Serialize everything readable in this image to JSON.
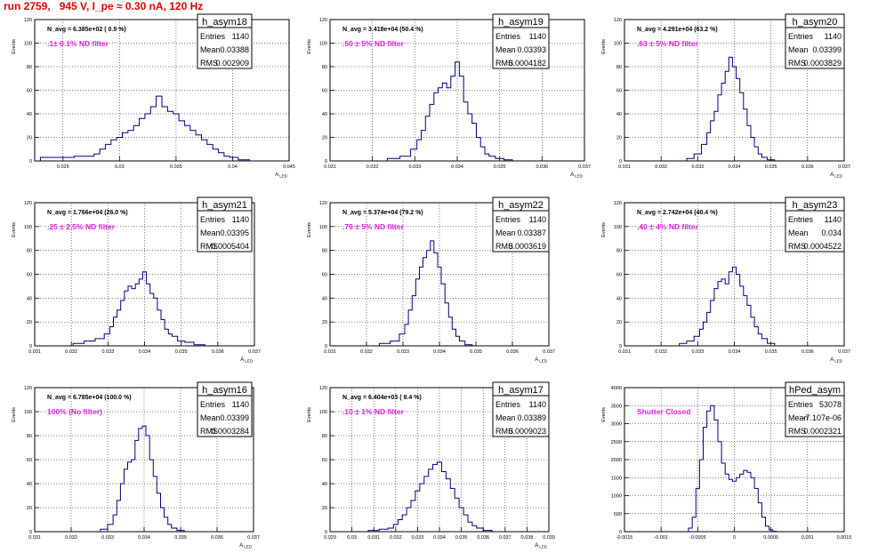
{
  "run_title": "run 2759,   945 V, I_pe ≈ 0.30 nA, 120 Hz",
  "colors": {
    "hist_line": "#000080",
    "filter_label": "#e020e0",
    "run_title": "#e00000",
    "grid": "#000000"
  },
  "chart_data": [
    {
      "type": "histogram",
      "hist_name": "h_asym18",
      "nav": "N_avg = 6.385e+02 ( 0.9 %)",
      "filter": ".1± 0.1% ND filter",
      "stats": [
        {
          "label": "Entries",
          "value": "1140"
        },
        {
          "label": "Mean",
          "value": "0.03388"
        },
        {
          "label": "RMS",
          "value": "0.002909"
        }
      ],
      "xlabel": "A_LED",
      "ylabel": "Events",
      "xlim": [
        0.0225,
        0.045
      ],
      "ylim": [
        0,
        120
      ],
      "xticks": [
        "0.025",
        "0.03",
        "0.035",
        "0.04",
        "0.045"
      ],
      "xtick_values": [
        0.025,
        0.03,
        0.035,
        0.04,
        0.045
      ],
      "yticks": [
        "0",
        "20",
        "40",
        "60",
        "80",
        "100",
        "120"
      ],
      "ytick_values": [
        0,
        20,
        40,
        60,
        80,
        100,
        120
      ],
      "bins_x": [
        0.0245,
        0.0275,
        0.028,
        0.0285,
        0.029,
        0.0295,
        0.03,
        0.0305,
        0.031,
        0.0315,
        0.032,
        0.0325,
        0.033,
        0.0335,
        0.034,
        0.0345,
        0.035,
        0.0355,
        0.036,
        0.0365,
        0.037,
        0.0375,
        0.038,
        0.0385,
        0.039,
        0.0395,
        0.04,
        0.041
      ],
      "counts": [
        3,
        4,
        6,
        10,
        14,
        18,
        20,
        24,
        26,
        30,
        36,
        40,
        46,
        55,
        46,
        42,
        40,
        34,
        30,
        26,
        22,
        18,
        14,
        10,
        7,
        4,
        3,
        1
      ]
    },
    {
      "type": "histogram",
      "hist_name": "h_asym19",
      "nav": "N_avg = 3.418e+04 (50.4 %)",
      "filter": ".50 ± 5% ND filter",
      "stats": [
        {
          "label": "Entries",
          "value": "1140"
        },
        {
          "label": "Mean",
          "value": "0.03393"
        },
        {
          "label": "RMS",
          "value": "0.0004182"
        }
      ],
      "xlabel": "A_LED",
      "ylabel": "Events",
      "xlim": [
        0.031,
        0.037
      ],
      "ylim": [
        0,
        120
      ],
      "xticks": [
        "0.031",
        "0.032",
        "0.033",
        "0.034",
        "0.035",
        "0.036",
        "0.037"
      ],
      "xtick_values": [
        0.031,
        0.032,
        0.033,
        0.034,
        0.035,
        0.036,
        0.037
      ],
      "yticks": [
        "0",
        "20",
        "40",
        "60",
        "80",
        "100",
        "120"
      ],
      "ytick_values": [
        0,
        20,
        40,
        60,
        80,
        100,
        120
      ],
      "bins_x": [
        0.0325,
        0.0328,
        0.033,
        0.0331,
        0.0332,
        0.0333,
        0.0334,
        0.0335,
        0.0336,
        0.0337,
        0.0338,
        0.0339,
        0.034,
        0.0341,
        0.0342,
        0.0343,
        0.0344,
        0.0345,
        0.0346,
        0.0347,
        0.0348,
        0.035,
        0.0352
      ],
      "counts": [
        2,
        4,
        10,
        18,
        26,
        38,
        48,
        58,
        62,
        66,
        62,
        72,
        84,
        72,
        50,
        40,
        32,
        20,
        12,
        6,
        4,
        2,
        1
      ]
    },
    {
      "type": "histogram",
      "hist_name": "h_asym20",
      "nav": "N_avg = 4.291e+04 (63.2 %)",
      "filter": ".63 ± 5% ND filter",
      "stats": [
        {
          "label": "Entries",
          "value": "1140"
        },
        {
          "label": "Mean",
          "value": "0.03399"
        },
        {
          "label": "RMS",
          "value": "0.0003829"
        }
      ],
      "xlabel": "A_LED",
      "ylabel": "Events",
      "xlim": [
        0.031,
        0.037
      ],
      "ylim": [
        0,
        120
      ],
      "xticks": [
        "0.031",
        "0.032",
        "0.033",
        "0.034",
        "0.035",
        "0.036",
        "0.037"
      ],
      "xtick_values": [
        0.031,
        0.032,
        0.033,
        0.034,
        0.035,
        0.036,
        0.037
      ],
      "yticks": [
        "0",
        "20",
        "40",
        "60",
        "80",
        "100",
        "120"
      ],
      "ytick_values": [
        0,
        20,
        40,
        60,
        80,
        100,
        120
      ],
      "bins_x": [
        0.0328,
        0.033,
        0.0332,
        0.0333,
        0.0334,
        0.0335,
        0.0336,
        0.0337,
        0.0338,
        0.0339,
        0.034,
        0.0341,
        0.0342,
        0.0343,
        0.0344,
        0.0345,
        0.0346,
        0.0347,
        0.0348,
        0.035
      ],
      "counts": [
        2,
        6,
        14,
        24,
        34,
        42,
        56,
        66,
        76,
        88,
        80,
        70,
        58,
        44,
        30,
        20,
        12,
        6,
        3,
        1
      ]
    },
    {
      "type": "histogram",
      "hist_name": "h_asym21",
      "nav": "N_avg = 1.766e+04 (26.0 %)",
      "filter": ".25 ± 2.5% ND filter",
      "stats": [
        {
          "label": "Entries",
          "value": "1140"
        },
        {
          "label": "Mean",
          "value": "0.03395"
        },
        {
          "label": "RMS",
          "value": "0.0005404"
        }
      ],
      "xlabel": "A_LED",
      "ylabel": "Events",
      "xlim": [
        0.031,
        0.037
      ],
      "ylim": [
        0,
        120
      ],
      "xticks": [
        "0.031",
        "0.032",
        "0.033",
        "0.034",
        "0.035",
        "0.036",
        "0.037"
      ],
      "xtick_values": [
        0.031,
        0.032,
        0.033,
        0.034,
        0.035,
        0.036,
        0.037
      ],
      "yticks": [
        "0",
        "20",
        "40",
        "60",
        "80",
        "100",
        "120"
      ],
      "ytick_values": [
        0,
        20,
        40,
        60,
        80,
        100,
        120
      ],
      "bins_x": [
        0.0322,
        0.0325,
        0.0328,
        0.033,
        0.0331,
        0.0332,
        0.0333,
        0.0334,
        0.0335,
        0.0336,
        0.0337,
        0.0338,
        0.0339,
        0.034,
        0.0341,
        0.0342,
        0.0343,
        0.0344,
        0.0345,
        0.0346,
        0.0347,
        0.0348,
        0.035,
        0.0352,
        0.0355
      ],
      "counts": [
        2,
        4,
        6,
        10,
        16,
        24,
        30,
        38,
        46,
        50,
        48,
        52,
        56,
        62,
        52,
        44,
        40,
        30,
        22,
        14,
        10,
        8,
        4,
        3,
        1
      ]
    },
    {
      "type": "histogram",
      "hist_name": "h_asym22",
      "nav": "N_avg = 5.374e+04 (79.2 %)",
      "filter": ".79 ± 5% ND filter",
      "stats": [
        {
          "label": "Entries",
          "value": "1140"
        },
        {
          "label": "Mean",
          "value": "0.03387"
        },
        {
          "label": "RMS",
          "value": "0.0003619"
        }
      ],
      "xlabel": "A_LED",
      "ylabel": "Events",
      "xlim": [
        0.031,
        0.037
      ],
      "ylim": [
        0,
        120
      ],
      "xticks": [
        "0.031",
        "0.032",
        "0.033",
        "0.034",
        "0.035",
        "0.036",
        "0.037"
      ],
      "xtick_values": [
        0.031,
        0.032,
        0.033,
        0.034,
        0.035,
        0.036,
        0.037
      ],
      "yticks": [
        "0",
        "20",
        "40",
        "60",
        "80",
        "100",
        "120"
      ],
      "ytick_values": [
        0,
        20,
        40,
        60,
        80,
        100,
        120
      ],
      "bins_x": [
        0.0325,
        0.0328,
        0.033,
        0.0331,
        0.0332,
        0.0333,
        0.0334,
        0.0335,
        0.0336,
        0.0337,
        0.0338,
        0.0339,
        0.034,
        0.0341,
        0.0342,
        0.0343,
        0.0344,
        0.0345,
        0.0346,
        0.0348
      ],
      "counts": [
        2,
        4,
        10,
        18,
        30,
        42,
        56,
        66,
        74,
        80,
        88,
        78,
        66,
        52,
        36,
        24,
        14,
        8,
        4,
        1
      ]
    },
    {
      "type": "histogram",
      "hist_name": "h_asym23",
      "nav": "N_avg = 2.742e+04 (40.4 %)",
      "filter": ".40 ± 4% ND filter",
      "stats": [
        {
          "label": "Entries",
          "value": "1140"
        },
        {
          "label": "Mean",
          "value": "0.034"
        },
        {
          "label": "RMS",
          "value": "0.0004522"
        }
      ],
      "xlabel": "A_LED",
      "ylabel": "Events",
      "xlim": [
        0.031,
        0.037
      ],
      "ylim": [
        0,
        120
      ],
      "xticks": [
        "0.031",
        "0.032",
        "0.033",
        "0.034",
        "0.035",
        "0.036",
        "0.037"
      ],
      "xtick_values": [
        0.031,
        0.032,
        0.033,
        0.034,
        0.035,
        0.036,
        0.037
      ],
      "yticks": [
        "0",
        "20",
        "40",
        "60",
        "80",
        "100",
        "120"
      ],
      "ytick_values": [
        0,
        20,
        40,
        60,
        80,
        100,
        120
      ],
      "bins_x": [
        0.0326,
        0.0328,
        0.033,
        0.0331,
        0.0332,
        0.0333,
        0.0334,
        0.0335,
        0.0336,
        0.0337,
        0.0338,
        0.0339,
        0.034,
        0.0341,
        0.0342,
        0.0343,
        0.0344,
        0.0345,
        0.0346,
        0.0347,
        0.0348,
        0.035
      ],
      "counts": [
        2,
        4,
        8,
        14,
        20,
        28,
        38,
        48,
        54,
        56,
        52,
        62,
        66,
        60,
        50,
        42,
        34,
        24,
        16,
        10,
        6,
        2
      ]
    },
    {
      "type": "histogram",
      "hist_name": "h_asym16",
      "nav": "N_avg = 6.785e+04 (100.0 %)",
      "filter": "100% (No filter)",
      "stats": [
        {
          "label": "Entries",
          "value": "1140"
        },
        {
          "label": "Mean",
          "value": "0.03399"
        },
        {
          "label": "RMS",
          "value": "0.0003284"
        }
      ],
      "xlabel": "A_LED",
      "ylabel": "Events",
      "xlim": [
        0.031,
        0.037
      ],
      "ylim": [
        0,
        120
      ],
      "xticks": [
        "0.031",
        "0.032",
        "0.033",
        "0.034",
        "0.035",
        "0.036",
        "0.037"
      ],
      "xtick_values": [
        0.031,
        0.032,
        0.033,
        0.034,
        0.035,
        0.036,
        0.037
      ],
      "yticks": [
        "0",
        "20",
        "40",
        "60",
        "80",
        "100",
        "120"
      ],
      "ytick_values": [
        0,
        20,
        40,
        60,
        80,
        100,
        120
      ],
      "bins_x": [
        0.0329,
        0.0331,
        0.0332,
        0.0333,
        0.0334,
        0.0335,
        0.0336,
        0.0337,
        0.0338,
        0.0339,
        0.034,
        0.0341,
        0.0342,
        0.0343,
        0.0344,
        0.0345,
        0.0346,
        0.0347,
        0.0348,
        0.035
      ],
      "counts": [
        2,
        6,
        14,
        26,
        40,
        52,
        58,
        60,
        76,
        86,
        88,
        80,
        60,
        46,
        32,
        20,
        12,
        6,
        3,
        1
      ]
    },
    {
      "type": "histogram",
      "hist_name": "h_asym17",
      "nav": "N_avg = 6.404e+03 ( 9.4 %)",
      "filter": ".10 ± 1% ND filter",
      "stats": [
        {
          "label": "Entries",
          "value": "1140"
        },
        {
          "label": "Mean",
          "value": "0.03389"
        },
        {
          "label": "RMS",
          "value": "0.0009023"
        }
      ],
      "xlabel": "A_LED",
      "ylabel": "Events",
      "xlim": [
        0.029,
        0.039
      ],
      "ylim": [
        0,
        120
      ],
      "xticks": [
        "0.029",
        "0.03",
        "0.031",
        "0.032",
        "0.033",
        "0.034",
        "0.035",
        "0.036",
        "0.037",
        "0.038",
        "0.039"
      ],
      "xtick_values": [
        0.029,
        0.03,
        0.031,
        0.032,
        0.033,
        0.034,
        0.035,
        0.036,
        0.037,
        0.038,
        0.039
      ],
      "yticks": [
        "0",
        "20",
        "40",
        "60",
        "80",
        "100",
        "120"
      ],
      "ytick_values": [
        0,
        20,
        40,
        60,
        80,
        100,
        120
      ],
      "bins_x": [
        0.031,
        0.0315,
        0.0318,
        0.032,
        0.0322,
        0.0324,
        0.0326,
        0.0328,
        0.033,
        0.0332,
        0.0334,
        0.0336,
        0.0338,
        0.034,
        0.0342,
        0.0344,
        0.0346,
        0.0348,
        0.035,
        0.0352,
        0.0354,
        0.0356,
        0.0358,
        0.0362
      ],
      "counts": [
        1,
        2,
        3,
        6,
        10,
        14,
        20,
        26,
        34,
        40,
        46,
        52,
        56,
        58,
        50,
        44,
        36,
        28,
        20,
        14,
        8,
        5,
        3,
        1
      ]
    },
    {
      "type": "histogram",
      "hist_name": "hPed_asym",
      "nav": "",
      "filter": "Shutter Closed",
      "stats": [
        {
          "label": "Entries",
          "value": "53078"
        },
        {
          "label": "Mean",
          "value": "-7.107e-06"
        },
        {
          "label": "RMS",
          "value": "0.0002321"
        }
      ],
      "xlabel": "",
      "ylabel": "Events",
      "xlim": [
        -0.0015,
        0.0015
      ],
      "ylim": [
        0,
        4000
      ],
      "xticks": [
        "-0.0015",
        "-0.001",
        "-0.0005",
        "0",
        "0.0005",
        "0.001",
        "0.0015"
      ],
      "xtick_values": [
        -0.0015,
        -0.001,
        -0.0005,
        0,
        0.0005,
        0.001,
        0.0015
      ],
      "yticks": [
        "0",
        "500",
        "1000",
        "1500",
        "2000",
        "2500",
        "3000",
        "3500",
        "4000"
      ],
      "ytick_values": [
        0,
        500,
        1000,
        1500,
        2000,
        2500,
        3000,
        3500,
        4000
      ],
      "bins_x": [
        -0.0006,
        -0.00055,
        -0.0005,
        -0.00045,
        -0.0004,
        -0.00035,
        -0.0003,
        -0.00025,
        -0.0002,
        -0.00015,
        -0.0001,
        -5e-05,
        0.0,
        5e-05,
        0.0001,
        0.00015,
        0.0002,
        0.00025,
        0.0003,
        0.00035,
        0.0004,
        0.00045,
        0.0005,
        0.00055
      ],
      "counts": [
        100,
        400,
        1200,
        2000,
        2900,
        3350,
        3500,
        3100,
        2500,
        1900,
        1600,
        1450,
        1400,
        1500,
        1600,
        1700,
        1650,
        1500,
        1200,
        800,
        400,
        150,
        50,
        10
      ]
    }
  ]
}
